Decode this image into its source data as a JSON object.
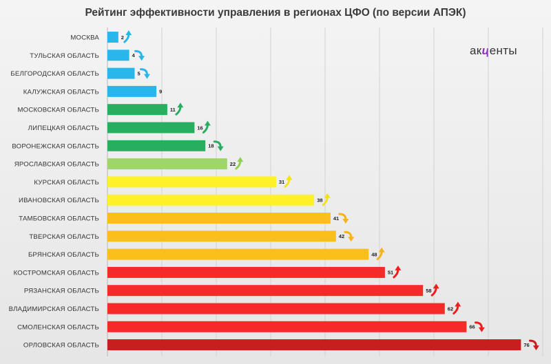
{
  "chart_data": {
    "type": "bar",
    "orientation": "horizontal",
    "title": "Рейтинг эффективности управления в регионах ЦФО (по версии АПЭК)",
    "xlabel": "",
    "ylabel": "",
    "xlim": [
      0,
      80
    ],
    "grid": true,
    "legend": "none",
    "categories": [
      "МОСКВА",
      "ТУЛЬСКАЯ ОБЛАСТЬ",
      "БЕЛГОРОДСКАЯ ОБЛАСТЬ",
      "КАЛУЖСКАЯ ОБЛАСТЬ",
      "МОСКОВСКАЯ ОБЛАСТЬ",
      "ЛИПЕЦКАЯ ОБЛАСТЬ",
      "ВОРОНЕЖСКАЯ ОБЛАСТЬ",
      "ЯРОСЛАВСКАЯ ОБЛАСТЬ",
      "КУРСКАЯ ОБЛАСТЬ",
      "ИВАНОВСКАЯ ОБЛАСТЬ",
      "ТАМБОВСКАЯ ОБЛАСТЬ",
      "ТВЕРСКАЯ ОБЛАСТЬ",
      "БРЯНСКАЯ ОБЛАСТЬ",
      "КОСТРОМСКАЯ ОБЛАСТЬ",
      "РЯЗАНСКАЯ ОБЛАСТЬ",
      "ВЛАДИМИРСКАЯ ОБЛАСТЬ",
      "СМОЛЕНСКАЯ ОБЛАСТЬ",
      "ОРЛОВСКАЯ ОБЛАСТЬ"
    ],
    "values": [
      2,
      4,
      5,
      9,
      11,
      16,
      18,
      22,
      31,
      38,
      41,
      42,
      48,
      51,
      58,
      62,
      66,
      76
    ],
    "trend": [
      "up",
      "down",
      "down",
      "none",
      "up",
      "up",
      "down",
      "up",
      "up",
      "up",
      "down",
      "down",
      "up",
      "up",
      "up",
      "up",
      "down",
      "down"
    ],
    "bar_colors": [
      "#29b6ea",
      "#29b6ea",
      "#29b6ea",
      "#29b6ea",
      "#27ae5f",
      "#27ae5f",
      "#27ae5f",
      "#9fd66b",
      "#fdf227",
      "#fdf227",
      "#fbbf1c",
      "#fbbf1c",
      "#fbbf1c",
      "#f72a2a",
      "#f72a2a",
      "#f72a2a",
      "#f72a2a",
      "#c71f1f"
    ],
    "arrow_colors": [
      "#29b6ea",
      "#29b6ea",
      "#29b6ea",
      "",
      "#27ae5f",
      "#27ae5f",
      "#27ae5f",
      "#8fcf52",
      "#f2e21a",
      "#f2e21a",
      "#f7b31a",
      "#f7b31a",
      "#f7b31a",
      "#f01d1d",
      "#f01d1d",
      "#f01d1d",
      "#f01d1d",
      "#c71f1f"
    ]
  },
  "logo": {
    "pre": "ак",
    "accent": "ц",
    "post": "енты"
  }
}
